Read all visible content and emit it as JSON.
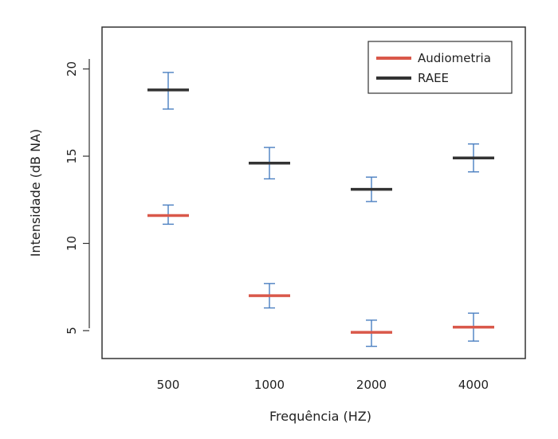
{
  "chart_data": {
    "type": "scatter",
    "xlabel": "Frequência (HZ)",
    "ylabel": "Intensidade (dB NA)",
    "categories": [
      "500",
      "1000",
      "2000",
      "4000"
    ],
    "ylim": [
      3.4,
      22.4
    ],
    "yticks": [
      "5",
      "10",
      "15",
      "20"
    ],
    "legend_position": "top-right",
    "grid": false,
    "series": [
      {
        "name": "Audiometria",
        "color": "#d9584a",
        "means": [
          11.6,
          7.0,
          4.9,
          5.2
        ],
        "lower": [
          11.1,
          6.3,
          4.1,
          4.4
        ],
        "upper": [
          12.2,
          7.7,
          5.6,
          6.0
        ]
      },
      {
        "name": "RAEE",
        "color": "#333333",
        "means": [
          18.8,
          14.6,
          13.1,
          14.9
        ],
        "lower": [
          17.7,
          13.7,
          12.4,
          14.1
        ],
        "upper": [
          19.8,
          15.5,
          13.8,
          15.7
        ]
      }
    ],
    "errorbar_color": "#4a7fc1"
  }
}
